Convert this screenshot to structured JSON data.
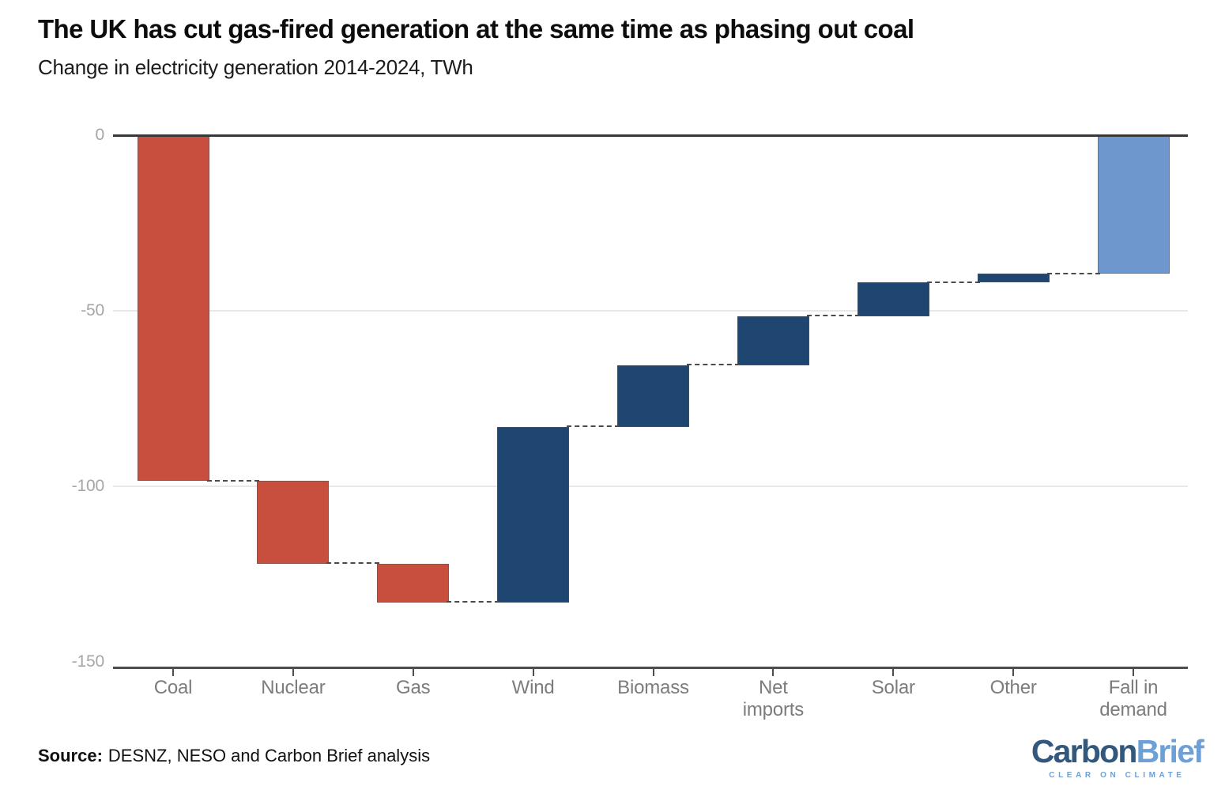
{
  "header": {
    "title": "The UK has cut gas-fired generation at the same time as phasing out coal",
    "subtitle": "Change in electricity generation 2014-2024, TWh"
  },
  "chart_data": {
    "type": "bar",
    "variant": "waterfall",
    "title": "The UK has cut gas-fired generation at the same time as phasing out coal",
    "subtitle": "Change in electricity generation 2014-2024, TWh",
    "unit": "TWh",
    "categories": [
      "Coal",
      "Nuclear",
      "Gas",
      "Wind",
      "Biomass",
      "Net imports",
      "Solar",
      "Other",
      "Fall in demand"
    ],
    "values": [
      -98.5,
      -23.5,
      -11,
      50,
      17.5,
      14,
      9.5,
      2.5,
      -39.5
    ],
    "kinds": [
      "decrease",
      "decrease",
      "decrease",
      "increase",
      "increase",
      "increase",
      "increase",
      "increase",
      "total"
    ],
    "cumulative": [
      -98.5,
      -122,
      -133,
      -83,
      -65.5,
      -51.5,
      -42,
      -39.5,
      -39.5
    ],
    "y_ticks": [
      0,
      -50,
      -100,
      -150
    ],
    "ylim": [
      -152,
      0
    ],
    "grid": "horizontal",
    "legend_position": "none",
    "connector_style": "dashed",
    "colors": {
      "decrease": "#C84E3E",
      "increase": "#1F4571",
      "total": "#6D97CD",
      "zero_line": "#383838",
      "axis": "#4D4D4D",
      "gridline": "#E8E8E8",
      "connector": "#4A4A4A",
      "y_label": "#A6A6A6",
      "x_label": "#7C7C7C"
    }
  },
  "footer": {
    "source_label": "Source:",
    "source_text": "DESNZ, NESO and Carbon Brief analysis"
  },
  "logo": {
    "part1": "Carbon",
    "part2": "Brief",
    "tagline": "CLEAR ON CLIMATE",
    "color1": "#33587D",
    "color2": "#6DA0D6"
  }
}
